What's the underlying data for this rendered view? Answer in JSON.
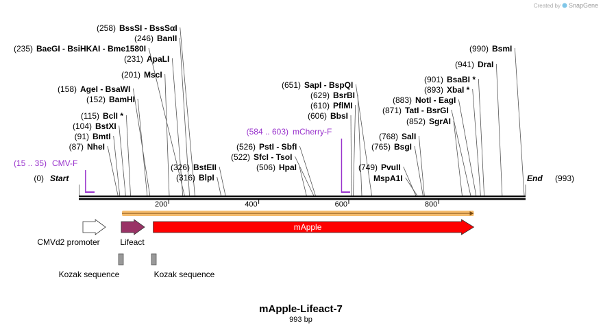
{
  "header": {
    "credit": "Created by",
    "brand": "SnapGene"
  },
  "map": {
    "title": "mApple-Lifeact-7",
    "length_label": "993 bp",
    "total_bp": 993,
    "ticks": [
      {
        "bp": 200,
        "label": "200"
      },
      {
        "bp": 400,
        "label": "400"
      },
      {
        "bp": 600,
        "label": "600"
      },
      {
        "bp": 800,
        "label": "800"
      }
    ],
    "ends": {
      "start": {
        "pos": "(0)",
        "name": "Start"
      },
      "end": {
        "pos": "(993)",
        "name": "End"
      }
    },
    "primers": [
      {
        "pos": "(15 .. 35)",
        "name": "CMV-F",
        "bp_start": 15,
        "bp_end": 35
      },
      {
        "pos": "(584 .. 603)",
        "name": "mCherry-F",
        "bp_start": 584,
        "bp_end": 603
      }
    ],
    "sites": [
      {
        "pos": "(87)",
        "name": "NheI",
        "bp": 87
      },
      {
        "pos": "(91)",
        "name": "BmtI",
        "bp": 91
      },
      {
        "pos": "(104)",
        "name": "BstXI",
        "bp": 104
      },
      {
        "pos": "(115)",
        "name": "BclI *",
        "bp": 115
      },
      {
        "pos": "(152)",
        "name": "BamHI",
        "bp": 152
      },
      {
        "pos": "(158)",
        "name": "AgeI  -  BsaWI",
        "bp": 158
      },
      {
        "pos": "(201)",
        "name": "MscI",
        "bp": 201
      },
      {
        "pos": "(231)",
        "name": "ApaLI",
        "bp": 231
      },
      {
        "pos": "(235)",
        "name": "BaeGI  -  BsiHKAI  -  Bme1580I",
        "bp": 235
      },
      {
        "pos": "(246)",
        "name": "BanII",
        "bp": 246
      },
      {
        "pos": "(258)",
        "name": "BssSI  -  BssSαI",
        "bp": 258
      },
      {
        "pos": "(316)",
        "name": "BlpI",
        "bp": 316
      },
      {
        "pos": "(326)",
        "name": "BstEII",
        "bp": 326
      },
      {
        "pos": "(506)",
        "name": "HpaI",
        "bp": 506
      },
      {
        "pos": "(522)",
        "name": "SfcI  -  TsoI",
        "bp": 522
      },
      {
        "pos": "(526)",
        "name": "PstI  -  SbfI",
        "bp": 526
      },
      {
        "pos": "(606)",
        "name": "BbsI",
        "bp": 606
      },
      {
        "pos": "(610)",
        "name": "PflMI",
        "bp": 610
      },
      {
        "pos": "(629)",
        "name": "BsrBI",
        "bp": 629
      },
      {
        "pos": "(651)",
        "name": "SapI  -  BspQI",
        "bp": 651
      },
      {
        "pos": "(749)",
        "name": "PvuII",
        "bp": 749
      },
      {
        "pos": "",
        "name": "MspA1I",
        "bp": 752
      },
      {
        "pos": "(765)",
        "name": "BsgI",
        "bp": 765
      },
      {
        "pos": "(768)",
        "name": "SalI",
        "bp": 768
      },
      {
        "pos": "(852)",
        "name": "SgrAI",
        "bp": 852
      },
      {
        "pos": "(871)",
        "name": "TatI  -  BsrGI",
        "bp": 871
      },
      {
        "pos": "(883)",
        "name": "NotI  -  EagI",
        "bp": 883
      },
      {
        "pos": "(893)",
        "name": "XbaI *",
        "bp": 893
      },
      {
        "pos": "(901)",
        "name": "BsaBI *",
        "bp": 901
      },
      {
        "pos": "(941)",
        "name": "DraI",
        "bp": 941
      },
      {
        "pos": "(990)",
        "name": "BsmI",
        "bp": 990
      }
    ],
    "features": [
      {
        "name": "CMVd2 promoter",
        "bp_start": 1,
        "bp_end": 60,
        "color": "#ffffff",
        "kind": "arrow"
      },
      {
        "name": "Lifeact",
        "bp_start": 96,
        "bp_end": 149,
        "color": "#993366",
        "kind": "arrow"
      },
      {
        "name": "mApple",
        "bp_start": 170,
        "bp_end": 878,
        "color": "#ff0000",
        "kind": "arrow"
      },
      {
        "name": "Kozak sequence",
        "bp_start": 90,
        "bp_end": 100,
        "color": "#999999",
        "kind": "box"
      },
      {
        "name": "Kozak sequence",
        "bp_start": 163,
        "bp_end": 172,
        "color": "#999999",
        "kind": "box"
      }
    ],
    "orf": {
      "bp_start": 96,
      "bp_end": 878,
      "color": "#f2a63c"
    }
  }
}
